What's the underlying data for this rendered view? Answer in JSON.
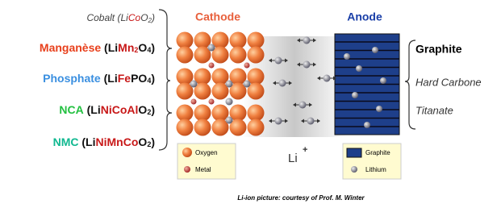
{
  "cathodes": [
    {
      "name": "Cobalt",
      "formula": [
        "(Li",
        "Co",
        "O2)"
      ]
    },
    {
      "name": "Manganèse",
      "formula": [
        "(Li",
        "Mn2",
        "O4)"
      ]
    },
    {
      "name": "Phosphate",
      "formula": [
        "(Li",
        "Fe",
        "PO4)"
      ]
    },
    {
      "name": "NCA",
      "formula": [
        "(Li",
        "NiCoAl",
        "O2)"
      ]
    },
    {
      "name": "NMC",
      "formula": [
        "(Li",
        "NiMnCo",
        "O2)"
      ]
    }
  ],
  "cathode_title": "Cathode",
  "anode_title": "Anode",
  "ion": {
    "symbol": "Li",
    "charge": "+"
  },
  "cathode_legend": [
    "Oxygen",
    "Metal"
  ],
  "anode_legend": [
    "Graphite",
    "Lithium"
  ],
  "anodes": [
    "Graphite",
    "Hard Carbone",
    "Titanate"
  ],
  "caption": "Li-ion picture: courtesy of Prof. M. Winter"
}
